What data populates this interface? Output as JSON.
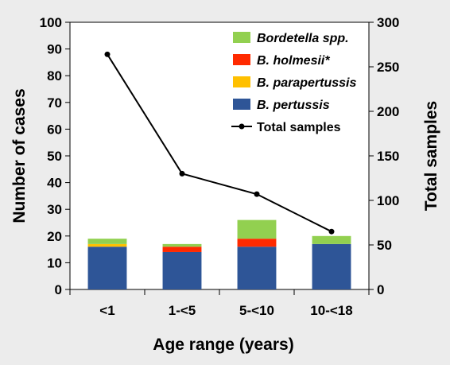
{
  "chart_data": {
    "type": "bar",
    "stacked": true,
    "categories": [
      "<1",
      "1-<5",
      "5-<10",
      "10-<18"
    ],
    "series": [
      {
        "name": "B. pertussis",
        "values": [
          16,
          14,
          16,
          17
        ],
        "color": "#2e5597"
      },
      {
        "name": "B. parapertussis",
        "values": [
          1,
          0,
          0,
          0
        ],
        "color": "#ffc000"
      },
      {
        "name": "B. holmesii*",
        "values": [
          0,
          2,
          3,
          0
        ],
        "color": "#ff2a00"
      },
      {
        "name": "Bordetella spp.",
        "values": [
          2,
          1,
          7,
          3
        ],
        "color": "#92d050"
      }
    ],
    "line_series": {
      "name": "Total samples",
      "values": [
        264,
        130,
        107,
        65
      ],
      "axis": "right",
      "color": "#000000"
    },
    "xlabel": "Age range (years)",
    "ylabel": "Number of cases",
    "y2label": "Total samples",
    "ylim": [
      0,
      100
    ],
    "y2lim": [
      0,
      300
    ],
    "yticks": [
      0,
      10,
      20,
      30,
      40,
      50,
      60,
      70,
      80,
      90,
      100
    ],
    "y2ticks": [
      0,
      50,
      100,
      150,
      200,
      250,
      300
    ],
    "grid": false,
    "legend": {
      "placement": "top-right",
      "entries": [
        "Bordetella spp.",
        "B. holmesii*",
        "B. parapertussis",
        "B. pertussis",
        "Total samples"
      ]
    }
  }
}
